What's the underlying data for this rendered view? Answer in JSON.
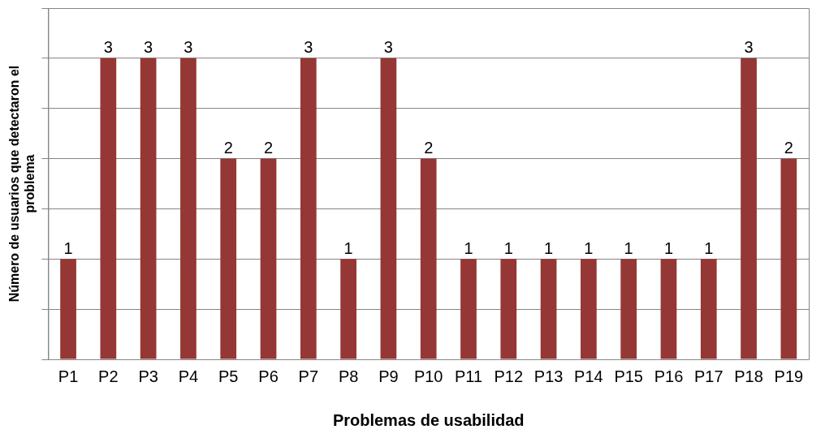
{
  "chart_data": {
    "type": "bar",
    "xlabel": "Problemas de usabilidad",
    "ylabel": "Número de usuarios que detectaron el problema",
    "categories": [
      "P1",
      "P2",
      "P3",
      "P4",
      "P5",
      "P6",
      "P7",
      "P8",
      "P9",
      "P10",
      "P11",
      "P12",
      "P13",
      "P14",
      "P15",
      "P16",
      "P17",
      "P18",
      "P19"
    ],
    "values": [
      1,
      3,
      3,
      3,
      2,
      2,
      3,
      1,
      3,
      2,
      1,
      1,
      1,
      1,
      1,
      1,
      1,
      3,
      2
    ],
    "color": "#953735",
    "ylim": [
      0,
      3.5
    ],
    "yticks": [
      {
        "value": 0,
        "label": null
      },
      {
        "value": 0.5,
        "label": null
      },
      {
        "value": 1,
        "label": null
      },
      {
        "value": 1.5,
        "label": null
      },
      {
        "value": 2,
        "label": null
      },
      {
        "value": 2.5,
        "label": null
      },
      {
        "value": 3,
        "label": null
      },
      {
        "value": 3.5,
        "label": null
      }
    ],
    "grid": "y",
    "data_labels": true,
    "tick_labels": "x",
    "legend": false
  }
}
